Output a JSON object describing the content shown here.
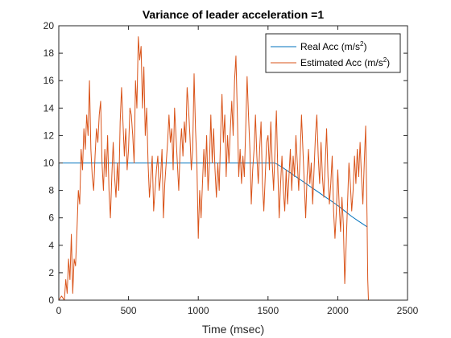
{
  "chart_data": {
    "type": "line",
    "title": "Variance of leader acceleration =1",
    "xlabel": "Time (msec)",
    "ylabel": "",
    "xlim": [
      0,
      2500
    ],
    "ylim": [
      0,
      20
    ],
    "xticks": [
      0,
      500,
      1000,
      1500,
      2000,
      2500
    ],
    "yticks": [
      0,
      2,
      4,
      6,
      8,
      10,
      12,
      14,
      16,
      18,
      20
    ],
    "grid": false,
    "legend_position": "top-right",
    "series": [
      {
        "name": "Real Acc (m/s^2)",
        "legend_base": "Real Acc (m/s",
        "legend_sup": "2",
        "legend_end": ")",
        "color": "#0072BD",
        "points": [
          [
            0,
            0
          ],
          [
            1,
            10
          ],
          [
            100,
            10
          ],
          [
            300,
            10
          ],
          [
            500,
            10
          ],
          [
            700,
            10
          ],
          [
            900,
            10
          ],
          [
            1100,
            10
          ],
          [
            1300,
            10
          ],
          [
            1500,
            10
          ],
          [
            1550,
            10
          ],
          [
            1600,
            9.7
          ],
          [
            1650,
            9.35
          ],
          [
            1700,
            9.0
          ],
          [
            1750,
            8.65
          ],
          [
            1800,
            8.3
          ],
          [
            1850,
            7.95
          ],
          [
            1900,
            7.6
          ],
          [
            1950,
            7.25
          ],
          [
            2000,
            6.9
          ],
          [
            2050,
            6.5
          ],
          [
            2100,
            6.1
          ],
          [
            2150,
            5.75
          ],
          [
            2210,
            5.35
          ]
        ]
      },
      {
        "name": "Estimated Acc (m/s^2)",
        "legend_base": "Estimated Acc (m/s",
        "legend_sup": "2",
        "legend_end": ")",
        "color": "#D95319",
        "points": [
          [
            0,
            0
          ],
          [
            20,
            0.3
          ],
          [
            40,
            0
          ],
          [
            50,
            1.5
          ],
          [
            60,
            0.5
          ],
          [
            70,
            3
          ],
          [
            80,
            1.5
          ],
          [
            90,
            4.8
          ],
          [
            100,
            0.5
          ],
          [
            110,
            3
          ],
          [
            120,
            2.5
          ],
          [
            130,
            5
          ],
          [
            140,
            8
          ],
          [
            150,
            7
          ],
          [
            160,
            11
          ],
          [
            170,
            9.5
          ],
          [
            180,
            12.5
          ],
          [
            190,
            11
          ],
          [
            200,
            13.5
          ],
          [
            210,
            12
          ],
          [
            220,
            16
          ],
          [
            230,
            11
          ],
          [
            240,
            9
          ],
          [
            250,
            8
          ],
          [
            260,
            10.5
          ],
          [
            270,
            12.5
          ],
          [
            280,
            11.5
          ],
          [
            290,
            13.5
          ],
          [
            300,
            14.5
          ],
          [
            310,
            10
          ],
          [
            320,
            8
          ],
          [
            330,
            11
          ],
          [
            340,
            9
          ],
          [
            350,
            12
          ],
          [
            360,
            8
          ],
          [
            370,
            6
          ],
          [
            380,
            9
          ],
          [
            390,
            11.5
          ],
          [
            400,
            9
          ],
          [
            410,
            7.5
          ],
          [
            420,
            10
          ],
          [
            430,
            8
          ],
          [
            440,
            13
          ],
          [
            450,
            15.5
          ],
          [
            460,
            13
          ],
          [
            470,
            10.5
          ],
          [
            480,
            12.5
          ],
          [
            490,
            9.5
          ],
          [
            500,
            11
          ],
          [
            510,
            14
          ],
          [
            520,
            13.5
          ],
          [
            530,
            12
          ],
          [
            540,
            10
          ],
          [
            550,
            16
          ],
          [
            560,
            14
          ],
          [
            570,
            19.2
          ],
          [
            580,
            17.5
          ],
          [
            590,
            18.5
          ],
          [
            600,
            14
          ],
          [
            610,
            17
          ],
          [
            620,
            12
          ],
          [
            630,
            14
          ],
          [
            640,
            10
          ],
          [
            650,
            7.5
          ],
          [
            660,
            9
          ],
          [
            670,
            10.5
          ],
          [
            680,
            6.5
          ],
          [
            690,
            8
          ],
          [
            700,
            9.5
          ],
          [
            710,
            10.5
          ],
          [
            720,
            8
          ],
          [
            730,
            9
          ],
          [
            740,
            11
          ],
          [
            750,
            6
          ],
          [
            760,
            8.5
          ],
          [
            770,
            10
          ],
          [
            780,
            11.5
          ],
          [
            790,
            13.5
          ],
          [
            800,
            11.5
          ],
          [
            810,
            12.5
          ],
          [
            820,
            9.5
          ],
          [
            830,
            14
          ],
          [
            840,
            12
          ],
          [
            850,
            10
          ],
          [
            860,
            8
          ],
          [
            870,
            11
          ],
          [
            880,
            12.5
          ],
          [
            890,
            10.5
          ],
          [
            900,
            13
          ],
          [
            910,
            11.5
          ],
          [
            920,
            15.5
          ],
          [
            930,
            14
          ],
          [
            940,
            12
          ],
          [
            950,
            9.5
          ],
          [
            960,
            11
          ],
          [
            970,
            16.5
          ],
          [
            980,
            12.5
          ],
          [
            990,
            10
          ],
          [
            1000,
            4.5
          ],
          [
            1010,
            8
          ],
          [
            1020,
            6
          ],
          [
            1030,
            8.5
          ],
          [
            1040,
            11
          ],
          [
            1050,
            9
          ],
          [
            1060,
            12
          ],
          [
            1070,
            8
          ],
          [
            1080,
            10
          ],
          [
            1090,
            13.5
          ],
          [
            1100,
            10
          ],
          [
            1110,
            12.5
          ],
          [
            1120,
            9.5
          ],
          [
            1130,
            7.5
          ],
          [
            1140,
            10
          ],
          [
            1150,
            8
          ],
          [
            1160,
            12
          ],
          [
            1170,
            15
          ],
          [
            1180,
            11.5
          ],
          [
            1190,
            13.5
          ],
          [
            1200,
            9
          ],
          [
            1210,
            12
          ],
          [
            1220,
            10
          ],
          [
            1230,
            12.5
          ],
          [
            1240,
            14.5
          ],
          [
            1250,
            12
          ],
          [
            1260,
            16
          ],
          [
            1270,
            17.8
          ],
          [
            1280,
            13.5
          ],
          [
            1290,
            9
          ],
          [
            1300,
            11
          ],
          [
            1310,
            8.5
          ],
          [
            1320,
            10.5
          ],
          [
            1330,
            9
          ],
          [
            1340,
            12.5
          ],
          [
            1350,
            16.3
          ],
          [
            1360,
            13.5
          ],
          [
            1370,
            11
          ],
          [
            1380,
            7
          ],
          [
            1390,
            9.5
          ],
          [
            1400,
            11
          ],
          [
            1410,
            13.5
          ],
          [
            1420,
            10.5
          ],
          [
            1430,
            8.5
          ],
          [
            1440,
            11
          ],
          [
            1450,
            13
          ],
          [
            1460,
            8.5
          ],
          [
            1470,
            6.5
          ],
          [
            1480,
            9
          ],
          [
            1490,
            11.5
          ],
          [
            1500,
            12
          ],
          [
            1510,
            9.5
          ],
          [
            1520,
            13
          ],
          [
            1530,
            10
          ],
          [
            1540,
            8
          ],
          [
            1550,
            11
          ],
          [
            1560,
            13.8
          ],
          [
            1570,
            9.5
          ],
          [
            1580,
            6
          ],
          [
            1590,
            8.5
          ],
          [
            1600,
            10.5
          ],
          [
            1610,
            8
          ],
          [
            1620,
            6.5
          ],
          [
            1630,
            9.5
          ],
          [
            1640,
            7
          ],
          [
            1650,
            9
          ],
          [
            1660,
            11
          ],
          [
            1670,
            8
          ],
          [
            1680,
            10.5
          ],
          [
            1690,
            9
          ],
          [
            1700,
            12
          ],
          [
            1710,
            10
          ],
          [
            1720,
            8
          ],
          [
            1730,
            10.5
          ],
          [
            1740,
            13.5
          ],
          [
            1750,
            11
          ],
          [
            1760,
            8.5
          ],
          [
            1770,
            6
          ],
          [
            1780,
            9
          ],
          [
            1790,
            11
          ],
          [
            1800,
            8.5
          ],
          [
            1810,
            10
          ],
          [
            1820,
            7
          ],
          [
            1830,
            9.5
          ],
          [
            1840,
            12
          ],
          [
            1850,
            13.5
          ],
          [
            1860,
            10.5
          ],
          [
            1870,
            8.5
          ],
          [
            1880,
            11.5
          ],
          [
            1890,
            9
          ],
          [
            1900,
            7.5
          ],
          [
            1910,
            10
          ],
          [
            1920,
            12.5
          ],
          [
            1930,
            9
          ],
          [
            1940,
            7
          ],
          [
            1950,
            8.5
          ],
          [
            1960,
            10.5
          ],
          [
            1970,
            6.5
          ],
          [
            1980,
            4.5
          ],
          [
            1990,
            6.5
          ],
          [
            2000,
            9.5
          ],
          [
            2010,
            7
          ],
          [
            2020,
            5
          ],
          [
            2030,
            7.5
          ],
          [
            2040,
            5.5
          ],
          [
            2050,
            1.2
          ],
          [
            2060,
            4
          ],
          [
            2070,
            7
          ],
          [
            2080,
            10
          ],
          [
            2090,
            8.5
          ],
          [
            2100,
            6.5
          ],
          [
            2110,
            8
          ],
          [
            2120,
            10.5
          ],
          [
            2130,
            8.5
          ],
          [
            2140,
            11
          ],
          [
            2150,
            9
          ],
          [
            2160,
            11.5
          ],
          [
            2170,
            9
          ],
          [
            2180,
            7
          ],
          [
            2190,
            10
          ],
          [
            2200,
            12.7
          ],
          [
            2205,
            9
          ],
          [
            2210,
            6
          ],
          [
            2215,
            1.5
          ],
          [
            2220,
            0
          ]
        ]
      }
    ]
  }
}
